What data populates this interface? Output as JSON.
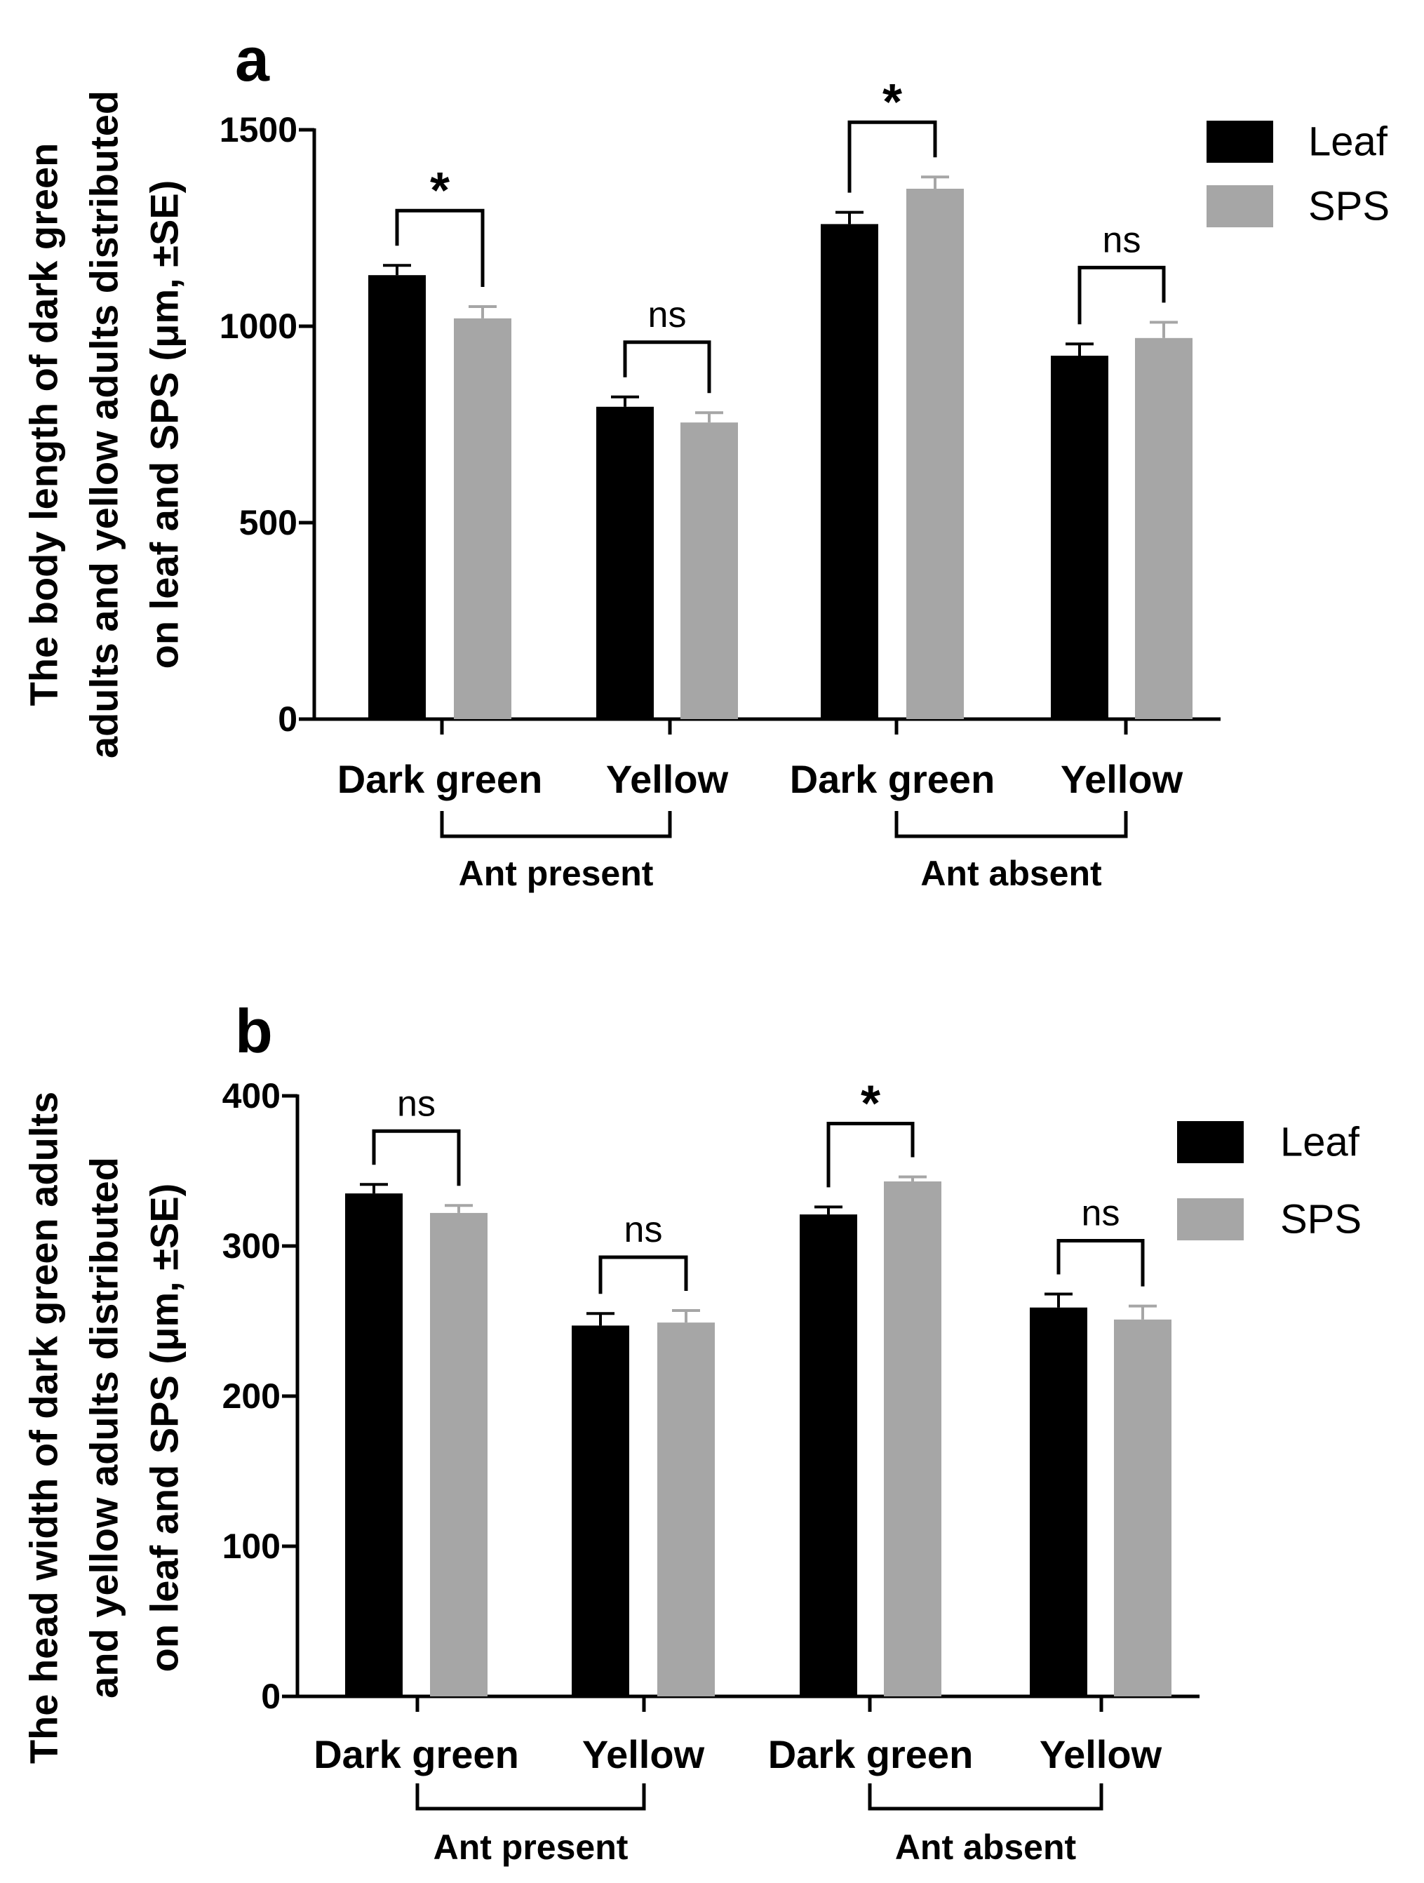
{
  "chart_data": [
    {
      "type": "bar",
      "panel_label": "a",
      "ylabel_lines": [
        "The body length of dark green",
        "adults and yellow adults distributed",
        "on leaf and SPS (μm, ±SE)"
      ],
      "categories": [
        "Dark green",
        "Yellow",
        "Dark green",
        "Yellow"
      ],
      "groups": [
        {
          "label": "Ant present",
          "categories": [
            0,
            1
          ]
        },
        {
          "label": "Ant absent",
          "categories": [
            2,
            3
          ]
        }
      ],
      "series": [
        {
          "name": "Leaf",
          "color": "#000000",
          "values": [
            1130,
            795,
            1260,
            925
          ],
          "errors": [
            25,
            25,
            30,
            30
          ]
        },
        {
          "name": "SPS",
          "color": "#a6a6a6",
          "values": [
            1020,
            755,
            1350,
            970
          ],
          "errors": [
            30,
            25,
            30,
            40
          ]
        }
      ],
      "significance": [
        "*",
        "ns",
        "*",
        "ns"
      ],
      "ylim": [
        0,
        1500
      ],
      "yticks": [
        0,
        500,
        1000,
        1500
      ],
      "legend_position": "top-right"
    },
    {
      "type": "bar",
      "panel_label": "b",
      "ylabel_lines": [
        "The head width of dark green adults",
        "and yellow adults distributed",
        "on leaf and SPS (μm, ±SE)"
      ],
      "categories": [
        "Dark green",
        "Yellow",
        "Dark green",
        "Yellow"
      ],
      "groups": [
        {
          "label": "Ant present",
          "categories": [
            0,
            1
          ]
        },
        {
          "label": "Ant absent",
          "categories": [
            2,
            3
          ]
        }
      ],
      "series": [
        {
          "name": "Leaf",
          "color": "#000000",
          "values": [
            335,
            247,
            321,
            259
          ],
          "errors": [
            6,
            8,
            5,
            9
          ]
        },
        {
          "name": "SPS",
          "color": "#a6a6a6",
          "values": [
            322,
            249,
            343,
            251
          ],
          "errors": [
            5,
            8,
            3,
            9
          ]
        }
      ],
      "significance": [
        "ns",
        "ns",
        "*",
        "ns"
      ],
      "ylim": [
        0,
        400
      ],
      "yticks": [
        0,
        100,
        200,
        300,
        400
      ],
      "legend_position": "top-right"
    }
  ]
}
